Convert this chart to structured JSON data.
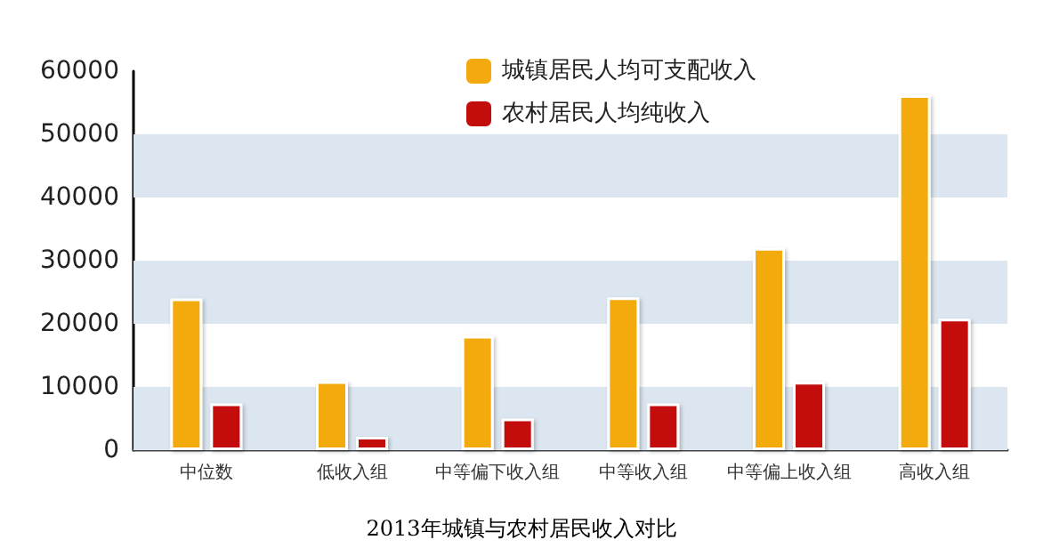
{
  "chart_data": {
    "type": "bar",
    "title": "2013年城镇与农村居民收入对比",
    "categories": [
      "中位数",
      "低收入组",
      "中等偏下收入组",
      "中等收入组",
      "中等偏上收入组",
      "高收入组"
    ],
    "series": [
      {
        "name": "城镇居民人均可支配收入",
        "color": "#f2aa0f",
        "values": [
          24000,
          10900,
          18100,
          24200,
          32000,
          56200
        ]
      },
      {
        "name": "农村居民人均纯收入",
        "color": "#c30d0d",
        "values": [
          7400,
          2100,
          5000,
          7400,
          10800,
          20800
        ]
      }
    ],
    "ylim": [
      0,
      60000
    ],
    "yticks": [
      0,
      10000,
      20000,
      30000,
      40000,
      50000,
      60000
    ],
    "bands": [
      {
        "axis": "y",
        "from": 0,
        "to": 10000,
        "color": "#dce6f0"
      },
      {
        "axis": "y",
        "from": 20000,
        "to": 30000,
        "color": "#dce6f0"
      },
      {
        "axis": "y",
        "from": 40000,
        "to": 50000,
        "color": "#dce6f0"
      }
    ],
    "grid": false,
    "legend": "top"
  }
}
